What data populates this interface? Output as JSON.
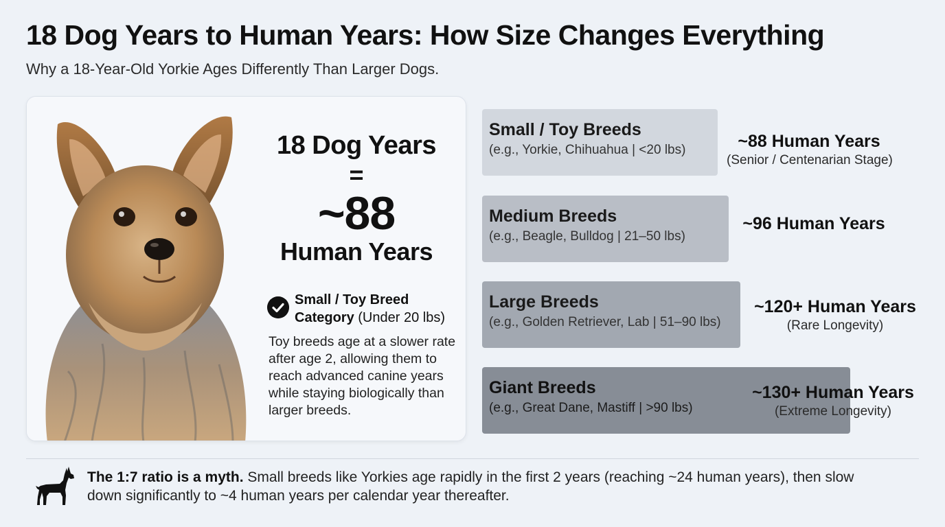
{
  "title": "18 Dog Years to Human Years: How Size Changes Everything",
  "subtitle": "Why a 18-Year-Old Yorkie Ages Differently Than Larger Dogs.",
  "card": {
    "photo_icon": "yorkshire-terrier-photo",
    "equation": {
      "dog_years": "18 Dog Years",
      "equals": "=",
      "value": "~88",
      "unit": "Human Years"
    },
    "category": {
      "icon": "check-circle-icon",
      "label_bold_1": "Small / Toy Breed",
      "label_bold_2": "Category",
      "label_suffix": "(Under 20 lbs)"
    },
    "description": "Toy breeds age at a slower rate after age 2, allowing them to reach advanced canine years while staying biologically than larger breeds."
  },
  "breeds": [
    {
      "name": "Small / Toy Breeds",
      "examples": "(e.g., Yorkie, Chihuahua | <20 lbs)",
      "result": "~88 Human Years",
      "note": "(Senior / Centenarian Stage)",
      "color": "#d2d7de"
    },
    {
      "name": "Medium Breeds",
      "examples": "(e.g., Beagle, Bulldog | 21–50 lbs)",
      "result": "~96 Human Years",
      "note": "",
      "color": "#b9bec6"
    },
    {
      "name": "Large Breeds",
      "examples": "(e.g., Golden Retriever, Lab | 51–90 lbs)",
      "result": "~120+ Human Years",
      "note": "(Rare Longevity)",
      "color": "#a2a8b1"
    },
    {
      "name": "Giant Breeds",
      "examples": "(e.g., Great Dane, Mastiff | >90 lbs)",
      "result": "~130+ Human Years",
      "note": "(Extreme Longevity)",
      "color": "#878d96"
    }
  ],
  "footer": {
    "icon": "dog-silhouette-icon",
    "bold": "The 1:7 ratio is a myth.",
    "text": " Small breeds like Yorkies age rapidly in the first 2 years (reaching ~24 human years), then slow down significantly to ~4 human years per calendar year thereafter."
  }
}
